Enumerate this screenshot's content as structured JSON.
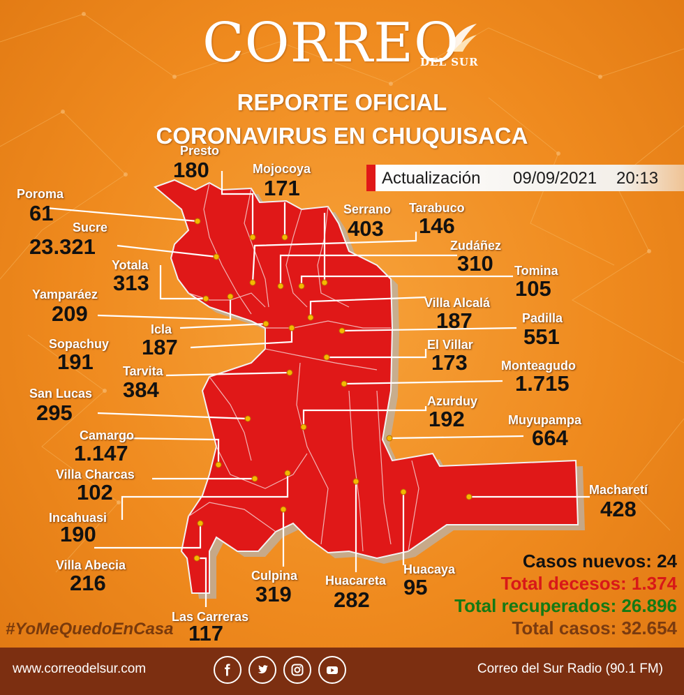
{
  "header": {
    "logo_text": "CORREO",
    "logo_sub": "DEL SUR",
    "title_line1": "REPORTE OFICIAL",
    "title_line2": "CORONAVIRUS EN CHUQUISACA"
  },
  "update": {
    "label": "Actualización",
    "date": "09/09/2021",
    "time": "20:13"
  },
  "municipalities": [
    {
      "name": "Presto",
      "cases": "180"
    },
    {
      "name": "Mojocoya",
      "cases": "171"
    },
    {
      "name": "Poroma",
      "cases": "61"
    },
    {
      "name": "Sucre",
      "cases": "23.321"
    },
    {
      "name": "Serrano",
      "cases": "403"
    },
    {
      "name": "Tarabuco",
      "cases": "146"
    },
    {
      "name": "Zudáñez",
      "cases": "310"
    },
    {
      "name": "Yotala",
      "cases": "313"
    },
    {
      "name": "Tomina",
      "cases": "105"
    },
    {
      "name": "Yamparáez",
      "cases": "209"
    },
    {
      "name": "Villa Alcalá",
      "cases": "187"
    },
    {
      "name": "Padilla",
      "cases": "551"
    },
    {
      "name": "Icla",
      "cases": "187"
    },
    {
      "name": "Sopachuy",
      "cases": "191"
    },
    {
      "name": "El Villar",
      "cases": "173"
    },
    {
      "name": "Tarvita",
      "cases": "384"
    },
    {
      "name": "Monteagudo",
      "cases": "1.715"
    },
    {
      "name": "San Lucas",
      "cases": "295"
    },
    {
      "name": "Azurduy",
      "cases": "192"
    },
    {
      "name": "Muyupampa",
      "cases": "664"
    },
    {
      "name": "Camargo",
      "cases": "1.147"
    },
    {
      "name": "Villa Charcas",
      "cases": "102"
    },
    {
      "name": "Macharetí",
      "cases": "428"
    },
    {
      "name": "Incahuasi",
      "cases": "190"
    },
    {
      "name": "Villa Abecia",
      "cases": "216"
    },
    {
      "name": "Culpina",
      "cases": "319"
    },
    {
      "name": "Huacareta",
      "cases": "282"
    },
    {
      "name": "Huacaya",
      "cases": "95"
    },
    {
      "name": "Las Carreras",
      "cases": "117"
    }
  ],
  "totals": {
    "new_cases": "Casos nuevos: 24",
    "deaths": "Total decesos: 1.374",
    "recovered": "Total recuperados: 26.896",
    "total": "Total casos: 32.654"
  },
  "hashtag": "#YoMeQuedoEnCasa",
  "footer": {
    "website": "www.correodelsur.com",
    "radio": "Correo del Sur Radio (90.1 FM)",
    "social_icons": [
      "facebook-icon",
      "twitter-icon",
      "instagram-icon",
      "youtube-icon"
    ]
  },
  "colors": {
    "background": "#ef8a1e",
    "map": "#e01818",
    "footer": "#7c2f11",
    "deaths": "#d81818",
    "recovered": "#147a14",
    "total": "#7a3b10"
  }
}
